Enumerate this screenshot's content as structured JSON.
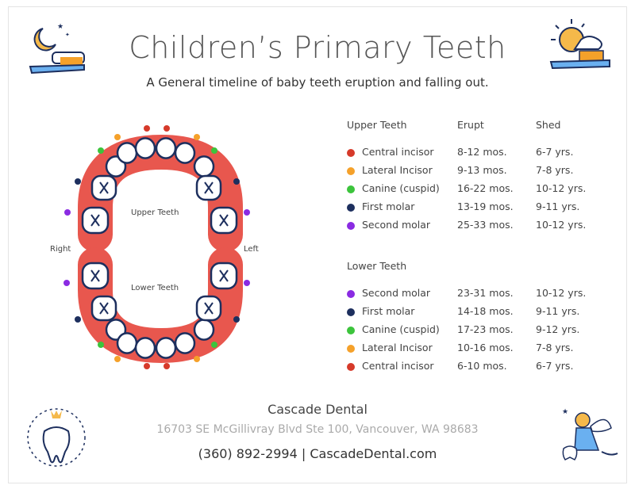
{
  "title": "Children’s Primary Teeth",
  "subtitle": "A General timeline of baby teeth eruption and falling out.",
  "colors": {
    "central": "#d63a2a",
    "lateral": "#f5a12a",
    "canine": "#3cc43c",
    "first_molar": "#1d2f5e",
    "second_molar": "#8a2be2",
    "gum": "#e8574e",
    "tooth_outline": "#1d2f5e"
  },
  "diagram": {
    "upper_label": "Upper Teeth",
    "lower_label": "Lower Teeth",
    "right_label": "Right",
    "left_label": "Left"
  },
  "upper": {
    "heading": "Upper Teeth",
    "erupt_header": "Erupt",
    "shed_header": "Shed",
    "rows": [
      {
        "name": "Central incisor",
        "erupt": "8-12 mos.",
        "shed": "6-7 yrs.",
        "color": "#d63a2a"
      },
      {
        "name": "Lateral Incisor",
        "erupt": "9-13 mos.",
        "shed": "7-8 yrs.",
        "color": "#f5a12a"
      },
      {
        "name": "Canine (cuspid)",
        "erupt": "16-22 mos.",
        "shed": "10-12 yrs.",
        "color": "#3cc43c"
      },
      {
        "name": "First molar",
        "erupt": "13-19 mos.",
        "shed": "9-11 yrs.",
        "color": "#1d2f5e"
      },
      {
        "name": "Second molar",
        "erupt": "25-33 mos.",
        "shed": "10-12 yrs.",
        "color": "#8a2be2"
      }
    ]
  },
  "lower": {
    "heading": "Lower Teeth",
    "rows": [
      {
        "name": "Second molar",
        "erupt": "23-31 mos.",
        "shed": "10-12 yrs.",
        "color": "#8a2be2"
      },
      {
        "name": "First molar",
        "erupt": "14-18 mos.",
        "shed": "9-11 yrs.",
        "color": "#1d2f5e"
      },
      {
        "name": "Canine (cuspid)",
        "erupt": "17-23 mos.",
        "shed": "9-12 yrs.",
        "color": "#3cc43c"
      },
      {
        "name": "Lateral Incisor",
        "erupt": "10-16 mos.",
        "shed": "7-8 yrs.",
        "color": "#f5a12a"
      },
      {
        "name": "Central incisor",
        "erupt": "6-10 mos.",
        "shed": "6-7 yrs.",
        "color": "#d63a2a"
      }
    ]
  },
  "footer": {
    "name": "Cascade Dental",
    "address": "16703 SE McGillivray Blvd Ste 100, Vancouver, WA 98683",
    "contact": "(360) 892-2994 | CascadeDental.com"
  }
}
